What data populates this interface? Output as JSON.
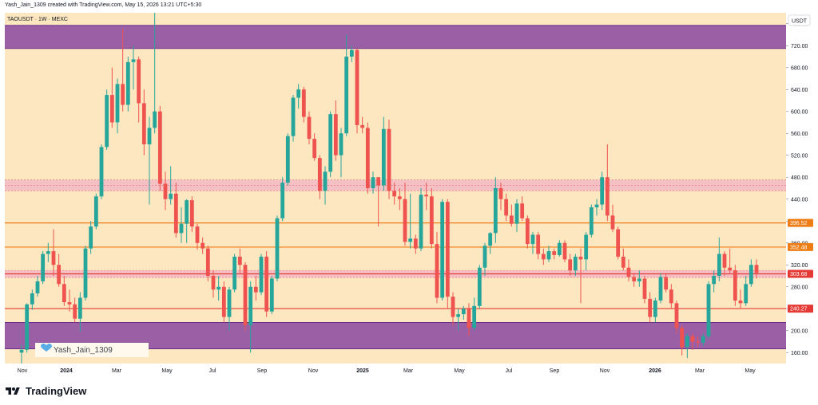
{
  "header": {
    "title": "Yash_Jain_1309 created with TradingView.com, May 15, 2026 13:21 UTC+5:30"
  },
  "symbol_label": "TAOUSDT · 1W · MEXC",
  "currency_button": "USDT",
  "watermark_user": "Yash_Jain_1309",
  "logo_text": "TradingView",
  "colors": {
    "background": "#fde7c0",
    "bull": "#26a69a",
    "bear": "#ef5350",
    "zone_purple": "#9a5fa4",
    "zone_pink": "#f2b9c3",
    "line_orange": "#ef7d16",
    "line_red": "#e53935"
  },
  "chart_data": {
    "type": "candlestick",
    "interval": "1W",
    "ylim": [
      140,
      780
    ],
    "y_ticks": [
      160,
      200,
      240,
      280,
      320,
      360,
      400,
      440,
      480,
      520,
      560,
      600,
      640,
      680,
      720,
      760
    ],
    "x_labels": [
      "Nov",
      "2024",
      "Mar",
      "May",
      "Jul",
      "Sep",
      "Nov",
      "2025",
      "Mar",
      "May",
      "Jul",
      "Sep",
      "Nov",
      "2026",
      "Mar",
      "May"
    ],
    "zones": [
      {
        "type": "purple",
        "from": 715,
        "to": 757
      },
      {
        "type": "purple",
        "from": 167,
        "to": 215
      },
      {
        "type": "pink",
        "from": 455,
        "to": 475
      },
      {
        "type": "pink",
        "from": 297,
        "to": 310
      }
    ],
    "levels": [
      {
        "value": 396.52,
        "label": "396.52",
        "color": "orange"
      },
      {
        "value": 352.48,
        "label": "352.48",
        "color": "orange"
      },
      {
        "value": 303.68,
        "label": "303.68",
        "color": "red"
      },
      {
        "value": 240.27,
        "label": "240.27",
        "color": "red"
      }
    ],
    "candles": [
      {
        "o": 160,
        "h": 175,
        "l": 140,
        "c": 165
      },
      {
        "o": 165,
        "h": 250,
        "l": 160,
        "c": 248
      },
      {
        "o": 248,
        "h": 275,
        "l": 238,
        "c": 268
      },
      {
        "o": 268,
        "h": 300,
        "l": 262,
        "c": 290
      },
      {
        "o": 290,
        "h": 345,
        "l": 285,
        "c": 340
      },
      {
        "o": 340,
        "h": 360,
        "l": 325,
        "c": 345
      },
      {
        "o": 345,
        "h": 385,
        "l": 300,
        "c": 320
      },
      {
        "o": 320,
        "h": 340,
        "l": 280,
        "c": 285
      },
      {
        "o": 285,
        "h": 300,
        "l": 245,
        "c": 252
      },
      {
        "o": 252,
        "h": 275,
        "l": 235,
        "c": 248
      },
      {
        "o": 248,
        "h": 260,
        "l": 215,
        "c": 222
      },
      {
        "o": 222,
        "h": 270,
        "l": 198,
        "c": 260
      },
      {
        "o": 260,
        "h": 355,
        "l": 255,
        "c": 350
      },
      {
        "o": 350,
        "h": 400,
        "l": 340,
        "c": 390
      },
      {
        "o": 390,
        "h": 450,
        "l": 385,
        "c": 445
      },
      {
        "o": 445,
        "h": 540,
        "l": 440,
        "c": 535
      },
      {
        "o": 535,
        "h": 640,
        "l": 530,
        "c": 630
      },
      {
        "o": 630,
        "h": 680,
        "l": 570,
        "c": 580
      },
      {
        "o": 580,
        "h": 660,
        "l": 560,
        "c": 650
      },
      {
        "o": 650,
        "h": 750,
        "l": 600,
        "c": 612
      },
      {
        "o": 612,
        "h": 700,
        "l": 600,
        "c": 690
      },
      {
        "o": 690,
        "h": 720,
        "l": 640,
        "c": 695
      },
      {
        "o": 695,
        "h": 700,
        "l": 580,
        "c": 615
      },
      {
        "o": 615,
        "h": 640,
        "l": 520,
        "c": 540
      },
      {
        "o": 540,
        "h": 590,
        "l": 430,
        "c": 570
      },
      {
        "o": 570,
        "h": 780,
        "l": 560,
        "c": 600
      },
      {
        "o": 600,
        "h": 610,
        "l": 455,
        "c": 468
      },
      {
        "o": 468,
        "h": 490,
        "l": 420,
        "c": 440
      },
      {
        "o": 440,
        "h": 500,
        "l": 430,
        "c": 450
      },
      {
        "o": 450,
        "h": 470,
        "l": 370,
        "c": 378
      },
      {
        "o": 378,
        "h": 425,
        "l": 360,
        "c": 395
      },
      {
        "o": 395,
        "h": 440,
        "l": 360,
        "c": 438
      },
      {
        "o": 438,
        "h": 445,
        "l": 380,
        "c": 390
      },
      {
        "o": 390,
        "h": 395,
        "l": 348,
        "c": 360
      },
      {
        "o": 360,
        "h": 370,
        "l": 340,
        "c": 350
      },
      {
        "o": 350,
        "h": 355,
        "l": 290,
        "c": 300
      },
      {
        "o": 300,
        "h": 310,
        "l": 260,
        "c": 275
      },
      {
        "o": 275,
        "h": 300,
        "l": 255,
        "c": 280
      },
      {
        "o": 280,
        "h": 290,
        "l": 215,
        "c": 225
      },
      {
        "o": 225,
        "h": 280,
        "l": 200,
        "c": 275
      },
      {
        "o": 275,
        "h": 340,
        "l": 270,
        "c": 335
      },
      {
        "o": 335,
        "h": 350,
        "l": 305,
        "c": 320
      },
      {
        "o": 320,
        "h": 325,
        "l": 200,
        "c": 210
      },
      {
        "o": 210,
        "h": 290,
        "l": 160,
        "c": 280
      },
      {
        "o": 280,
        "h": 300,
        "l": 255,
        "c": 270
      },
      {
        "o": 270,
        "h": 340,
        "l": 265,
        "c": 335
      },
      {
        "o": 335,
        "h": 345,
        "l": 225,
        "c": 235
      },
      {
        "o": 235,
        "h": 300,
        "l": 230,
        "c": 295
      },
      {
        "o": 295,
        "h": 410,
        "l": 290,
        "c": 405
      },
      {
        "o": 405,
        "h": 480,
        "l": 400,
        "c": 470
      },
      {
        "o": 470,
        "h": 560,
        "l": 465,
        "c": 555
      },
      {
        "o": 555,
        "h": 630,
        "l": 545,
        "c": 625
      },
      {
        "o": 625,
        "h": 650,
        "l": 605,
        "c": 640
      },
      {
        "o": 640,
        "h": 645,
        "l": 580,
        "c": 590
      },
      {
        "o": 590,
        "h": 600,
        "l": 540,
        "c": 550
      },
      {
        "o": 550,
        "h": 560,
        "l": 510,
        "c": 515
      },
      {
        "o": 515,
        "h": 520,
        "l": 440,
        "c": 455
      },
      {
        "o": 455,
        "h": 500,
        "l": 430,
        "c": 490
      },
      {
        "o": 490,
        "h": 600,
        "l": 480,
        "c": 595
      },
      {
        "o": 595,
        "h": 620,
        "l": 510,
        "c": 520
      },
      {
        "o": 520,
        "h": 570,
        "l": 480,
        "c": 560
      },
      {
        "o": 560,
        "h": 740,
        "l": 555,
        "c": 700
      },
      {
        "o": 700,
        "h": 720,
        "l": 690,
        "c": 712
      },
      {
        "o": 712,
        "h": 715,
        "l": 560,
        "c": 575
      },
      {
        "o": 575,
        "h": 590,
        "l": 560,
        "c": 570
      },
      {
        "o": 570,
        "h": 580,
        "l": 450,
        "c": 460
      },
      {
        "o": 460,
        "h": 490,
        "l": 450,
        "c": 480
      },
      {
        "o": 480,
        "h": 480,
        "l": 390,
        "c": 465
      },
      {
        "o": 465,
        "h": 590,
        "l": 455,
        "c": 568
      },
      {
        "o": 568,
        "h": 585,
        "l": 440,
        "c": 455
      },
      {
        "o": 455,
        "h": 470,
        "l": 430,
        "c": 445
      },
      {
        "o": 445,
        "h": 460,
        "l": 420,
        "c": 440
      },
      {
        "o": 440,
        "h": 470,
        "l": 355,
        "c": 362
      },
      {
        "o": 362,
        "h": 450,
        "l": 350,
        "c": 368
      },
      {
        "o": 368,
        "h": 375,
        "l": 340,
        "c": 350
      },
      {
        "o": 350,
        "h": 460,
        "l": 345,
        "c": 448
      },
      {
        "o": 448,
        "h": 470,
        "l": 420,
        "c": 445
      },
      {
        "o": 445,
        "h": 460,
        "l": 350,
        "c": 358
      },
      {
        "o": 358,
        "h": 380,
        "l": 250,
        "c": 260
      },
      {
        "o": 260,
        "h": 440,
        "l": 255,
        "c": 435
      },
      {
        "o": 435,
        "h": 440,
        "l": 240,
        "c": 262
      },
      {
        "o": 262,
        "h": 270,
        "l": 210,
        "c": 225
      },
      {
        "o": 225,
        "h": 240,
        "l": 200,
        "c": 230
      },
      {
        "o": 230,
        "h": 245,
        "l": 220,
        "c": 240
      },
      {
        "o": 240,
        "h": 250,
        "l": 190,
        "c": 205
      },
      {
        "o": 205,
        "h": 260,
        "l": 200,
        "c": 245
      },
      {
        "o": 245,
        "h": 320,
        "l": 240,
        "c": 315
      },
      {
        "o": 315,
        "h": 360,
        "l": 300,
        "c": 355
      },
      {
        "o": 355,
        "h": 380,
        "l": 340,
        "c": 378
      },
      {
        "o": 378,
        "h": 480,
        "l": 360,
        "c": 460
      },
      {
        "o": 460,
        "h": 470,
        "l": 420,
        "c": 440
      },
      {
        "o": 440,
        "h": 450,
        "l": 400,
        "c": 410
      },
      {
        "o": 410,
        "h": 430,
        "l": 390,
        "c": 395
      },
      {
        "o": 395,
        "h": 440,
        "l": 380,
        "c": 432
      },
      {
        "o": 432,
        "h": 445,
        "l": 400,
        "c": 405
      },
      {
        "o": 405,
        "h": 410,
        "l": 350,
        "c": 358
      },
      {
        "o": 358,
        "h": 380,
        "l": 340,
        "c": 375
      },
      {
        "o": 375,
        "h": 380,
        "l": 330,
        "c": 340
      },
      {
        "o": 340,
        "h": 350,
        "l": 320,
        "c": 330
      },
      {
        "o": 330,
        "h": 355,
        "l": 325,
        "c": 345
      },
      {
        "o": 345,
        "h": 350,
        "l": 330,
        "c": 338
      },
      {
        "o": 338,
        "h": 365,
        "l": 335,
        "c": 360
      },
      {
        "o": 360,
        "h": 365,
        "l": 325,
        "c": 330
      },
      {
        "o": 330,
        "h": 340,
        "l": 300,
        "c": 310
      },
      {
        "o": 310,
        "h": 340,
        "l": 300,
        "c": 335
      },
      {
        "o": 335,
        "h": 350,
        "l": 250,
        "c": 330
      },
      {
        "o": 330,
        "h": 380,
        "l": 310,
        "c": 375
      },
      {
        "o": 375,
        "h": 430,
        "l": 370,
        "c": 425
      },
      {
        "o": 425,
        "h": 440,
        "l": 410,
        "c": 430
      },
      {
        "o": 430,
        "h": 490,
        "l": 420,
        "c": 480
      },
      {
        "o": 480,
        "h": 540,
        "l": 400,
        "c": 410
      },
      {
        "o": 410,
        "h": 430,
        "l": 380,
        "c": 385
      },
      {
        "o": 385,
        "h": 390,
        "l": 330,
        "c": 335
      },
      {
        "o": 335,
        "h": 350,
        "l": 310,
        "c": 315
      },
      {
        "o": 315,
        "h": 330,
        "l": 290,
        "c": 298
      },
      {
        "o": 298,
        "h": 305,
        "l": 280,
        "c": 290
      },
      {
        "o": 290,
        "h": 310,
        "l": 280,
        "c": 295
      },
      {
        "o": 295,
        "h": 300,
        "l": 250,
        "c": 258
      },
      {
        "o": 258,
        "h": 270,
        "l": 215,
        "c": 225
      },
      {
        "o": 225,
        "h": 260,
        "l": 215,
        "c": 255
      },
      {
        "o": 255,
        "h": 305,
        "l": 250,
        "c": 298
      },
      {
        "o": 298,
        "h": 305,
        "l": 270,
        "c": 275
      },
      {
        "o": 275,
        "h": 285,
        "l": 240,
        "c": 250
      },
      {
        "o": 250,
        "h": 255,
        "l": 195,
        "c": 205
      },
      {
        "o": 205,
        "h": 210,
        "l": 155,
        "c": 170
      },
      {
        "o": 170,
        "h": 195,
        "l": 150,
        "c": 190
      },
      {
        "o": 190,
        "h": 195,
        "l": 165,
        "c": 180
      },
      {
        "o": 180,
        "h": 190,
        "l": 170,
        "c": 178
      },
      {
        "o": 178,
        "h": 195,
        "l": 172,
        "c": 190
      },
      {
        "o": 190,
        "h": 290,
        "l": 185,
        "c": 285
      },
      {
        "o": 285,
        "h": 310,
        "l": 270,
        "c": 300
      },
      {
        "o": 300,
        "h": 370,
        "l": 290,
        "c": 340
      },
      {
        "o": 340,
        "h": 345,
        "l": 300,
        "c": 315
      },
      {
        "o": 315,
        "h": 350,
        "l": 305,
        "c": 310
      },
      {
        "o": 310,
        "h": 320,
        "l": 245,
        "c": 255
      },
      {
        "o": 255,
        "h": 275,
        "l": 240,
        "c": 250
      },
      {
        "o": 250,
        "h": 300,
        "l": 245,
        "c": 285
      },
      {
        "o": 285,
        "h": 330,
        "l": 280,
        "c": 320
      },
      {
        "o": 320,
        "h": 330,
        "l": 295,
        "c": 305
      }
    ]
  }
}
